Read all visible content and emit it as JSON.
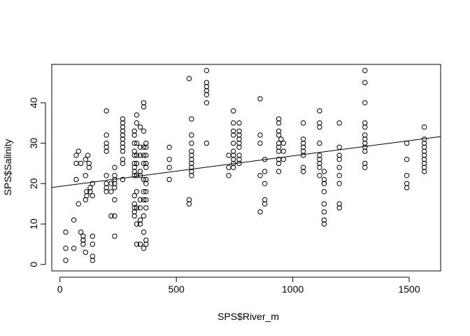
{
  "chart_data": {
    "type": "scatter",
    "title": "",
    "xlabel": "SPS$River_m",
    "ylabel": "SPS$Salinity",
    "xlim": [
      -35,
      1635
    ],
    "ylim": [
      -1.6,
      49.5
    ],
    "x_ticks": [
      0,
      500,
      1000,
      1500
    ],
    "y_ticks": [
      0,
      10,
      20,
      30,
      40
    ],
    "grid": false,
    "legend": "none",
    "point_style": "open-circle",
    "regression_line": {
      "intercept": 19.3,
      "slope": 0.00755
    },
    "points": [
      [
        25,
        8
      ],
      [
        25,
        4
      ],
      [
        25,
        1
      ],
      [
        60,
        11
      ],
      [
        60,
        4
      ],
      [
        70,
        27
      ],
      [
        70,
        25
      ],
      [
        70,
        21
      ],
      [
        80,
        28
      ],
      [
        80,
        15
      ],
      [
        90,
        25
      ],
      [
        90,
        8
      ],
      [
        100,
        7
      ],
      [
        100,
        6
      ],
      [
        100,
        6
      ],
      [
        100,
        5
      ],
      [
        110,
        26
      ],
      [
        110,
        22
      ],
      [
        110,
        16
      ],
      [
        110,
        3
      ],
      [
        115,
        18
      ],
      [
        115,
        17
      ],
      [
        120,
        27
      ],
      [
        125,
        25
      ],
      [
        125,
        24
      ],
      [
        130,
        19
      ],
      [
        130,
        18
      ],
      [
        140,
        20
      ],
      [
        140,
        17
      ],
      [
        140,
        7
      ],
      [
        140,
        5
      ],
      [
        140,
        2
      ],
      [
        140,
        1
      ],
      [
        200,
        38
      ],
      [
        200,
        32
      ],
      [
        200,
        30
      ],
      [
        200,
        29
      ],
      [
        200,
        28
      ],
      [
        200,
        22
      ],
      [
        200,
        20
      ],
      [
        200,
        19
      ],
      [
        200,
        18
      ],
      [
        220,
        20
      ],
      [
        220,
        18
      ],
      [
        220,
        12
      ],
      [
        235,
        24
      ],
      [
        235,
        22
      ],
      [
        235,
        21
      ],
      [
        235,
        20
      ],
      [
        235,
        19
      ],
      [
        235,
        16
      ],
      [
        235,
        12
      ],
      [
        235,
        7
      ],
      [
        270,
        36
      ],
      [
        270,
        35
      ],
      [
        270,
        34
      ],
      [
        270,
        33
      ],
      [
        270,
        32
      ],
      [
        270,
        31
      ],
      [
        270,
        30
      ],
      [
        270,
        29
      ],
      [
        270,
        28
      ],
      [
        270,
        26
      ],
      [
        270,
        25
      ],
      [
        270,
        21
      ],
      [
        320,
        33
      ],
      [
        320,
        32
      ],
      [
        320,
        30
      ],
      [
        320,
        28
      ],
      [
        320,
        27
      ],
      [
        320,
        25
      ],
      [
        320,
        24
      ],
      [
        320,
        23
      ],
      [
        320,
        22
      ],
      [
        320,
        17
      ],
      [
        320,
        15
      ],
      [
        320,
        14
      ],
      [
        320,
        13
      ],
      [
        320,
        12
      ],
      [
        330,
        37
      ],
      [
        330,
        35
      ],
      [
        330,
        30
      ],
      [
        330,
        27
      ],
      [
        330,
        25
      ],
      [
        330,
        22
      ],
      [
        330,
        18
      ],
      [
        330,
        14
      ],
      [
        330,
        10
      ],
      [
        330,
        5
      ],
      [
        345,
        34
      ],
      [
        345,
        29
      ],
      [
        345,
        27
      ],
      [
        345,
        23
      ],
      [
        345,
        22
      ],
      [
        345,
        16
      ],
      [
        345,
        14
      ],
      [
        345,
        11
      ],
      [
        345,
        10
      ],
      [
        345,
        5
      ],
      [
        360,
        40
      ],
      [
        360,
        39
      ],
      [
        360,
        33
      ],
      [
        360,
        29
      ],
      [
        360,
        27
      ],
      [
        360,
        25
      ],
      [
        360,
        21
      ],
      [
        360,
        18
      ],
      [
        360,
        16
      ],
      [
        360,
        12
      ],
      [
        360,
        8
      ],
      [
        360,
        4
      ],
      [
        370,
        30
      ],
      [
        370,
        29
      ],
      [
        370,
        27
      ],
      [
        370,
        25
      ],
      [
        370,
        24
      ],
      [
        370,
        21
      ],
      [
        370,
        20
      ],
      [
        370,
        18
      ],
      [
        370,
        16
      ],
      [
        370,
        14
      ],
      [
        370,
        6
      ],
      [
        370,
        5
      ],
      [
        470,
        29
      ],
      [
        470,
        26
      ],
      [
        470,
        24
      ],
      [
        470,
        21
      ],
      [
        555,
        46
      ],
      [
        555,
        16
      ],
      [
        555,
        15
      ],
      [
        565,
        36
      ],
      [
        565,
        32
      ],
      [
        565,
        30
      ],
      [
        565,
        28
      ],
      [
        565,
        27
      ],
      [
        565,
        26
      ],
      [
        565,
        25
      ],
      [
        565,
        24
      ],
      [
        565,
        23
      ],
      [
        565,
        22
      ],
      [
        630,
        48
      ],
      [
        630,
        45
      ],
      [
        630,
        44
      ],
      [
        630,
        43
      ],
      [
        630,
        42
      ],
      [
        630,
        40
      ],
      [
        630,
        30
      ],
      [
        725,
        27
      ],
      [
        725,
        24
      ],
      [
        725,
        22
      ],
      [
        745,
        38
      ],
      [
        745,
        35
      ],
      [
        745,
        33
      ],
      [
        745,
        32
      ],
      [
        745,
        30
      ],
      [
        745,
        28
      ],
      [
        745,
        27
      ],
      [
        745,
        26
      ],
      [
        745,
        25
      ],
      [
        745,
        24
      ],
      [
        770,
        35
      ],
      [
        770,
        33
      ],
      [
        770,
        32
      ],
      [
        770,
        31
      ],
      [
        770,
        30
      ],
      [
        770,
        29
      ],
      [
        770,
        27
      ],
      [
        770,
        26
      ],
      [
        770,
        25
      ],
      [
        860,
        41
      ],
      [
        860,
        32
      ],
      [
        860,
        30
      ],
      [
        860,
        22
      ],
      [
        860,
        13
      ],
      [
        880,
        26
      ],
      [
        880,
        23
      ],
      [
        880,
        20
      ],
      [
        880,
        16
      ],
      [
        880,
        15
      ],
      [
        940,
        36
      ],
      [
        940,
        35
      ],
      [
        940,
        33
      ],
      [
        940,
        32
      ],
      [
        940,
        30
      ],
      [
        940,
        29
      ],
      [
        940,
        28
      ],
      [
        940,
        26
      ],
      [
        940,
        25
      ],
      [
        940,
        23
      ],
      [
        950,
        31
      ],
      [
        960,
        30
      ],
      [
        960,
        28
      ],
      [
        960,
        26
      ],
      [
        1045,
        35
      ],
      [
        1045,
        31
      ],
      [
        1045,
        30
      ],
      [
        1045,
        29
      ],
      [
        1045,
        28
      ],
      [
        1045,
        27
      ],
      [
        1045,
        24
      ],
      [
        1045,
        23
      ],
      [
        1115,
        38
      ],
      [
        1115,
        35
      ],
      [
        1115,
        34
      ],
      [
        1115,
        30
      ],
      [
        1115,
        27
      ],
      [
        1115,
        26
      ],
      [
        1115,
        25
      ],
      [
        1115,
        24
      ],
      [
        1115,
        22
      ],
      [
        1135,
        23
      ],
      [
        1135,
        21
      ],
      [
        1135,
        20
      ],
      [
        1135,
        18
      ],
      [
        1135,
        15
      ],
      [
        1135,
        13
      ],
      [
        1135,
        11
      ],
      [
        1135,
        10
      ],
      [
        1135,
        20
      ],
      [
        1200,
        35
      ],
      [
        1200,
        29
      ],
      [
        1200,
        27
      ],
      [
        1200,
        26
      ],
      [
        1200,
        24
      ],
      [
        1200,
        22
      ],
      [
        1200,
        20
      ],
      [
        1200,
        15
      ],
      [
        1200,
        14
      ],
      [
        1310,
        48
      ],
      [
        1310,
        45
      ],
      [
        1310,
        40
      ],
      [
        1310,
        35
      ],
      [
        1310,
        34
      ],
      [
        1310,
        32
      ],
      [
        1310,
        31
      ],
      [
        1310,
        30
      ],
      [
        1310,
        29
      ],
      [
        1310,
        28
      ],
      [
        1310,
        25
      ],
      [
        1310,
        24
      ],
      [
        1490,
        30
      ],
      [
        1490,
        26
      ],
      [
        1490,
        22
      ],
      [
        1490,
        20
      ],
      [
        1490,
        19
      ],
      [
        1565,
        34
      ],
      [
        1565,
        31
      ],
      [
        1565,
        30
      ],
      [
        1565,
        29
      ],
      [
        1565,
        28
      ],
      [
        1565,
        27
      ],
      [
        1565,
        26
      ],
      [
        1565,
        25
      ],
      [
        1565,
        24
      ],
      [
        1565,
        23
      ]
    ]
  }
}
